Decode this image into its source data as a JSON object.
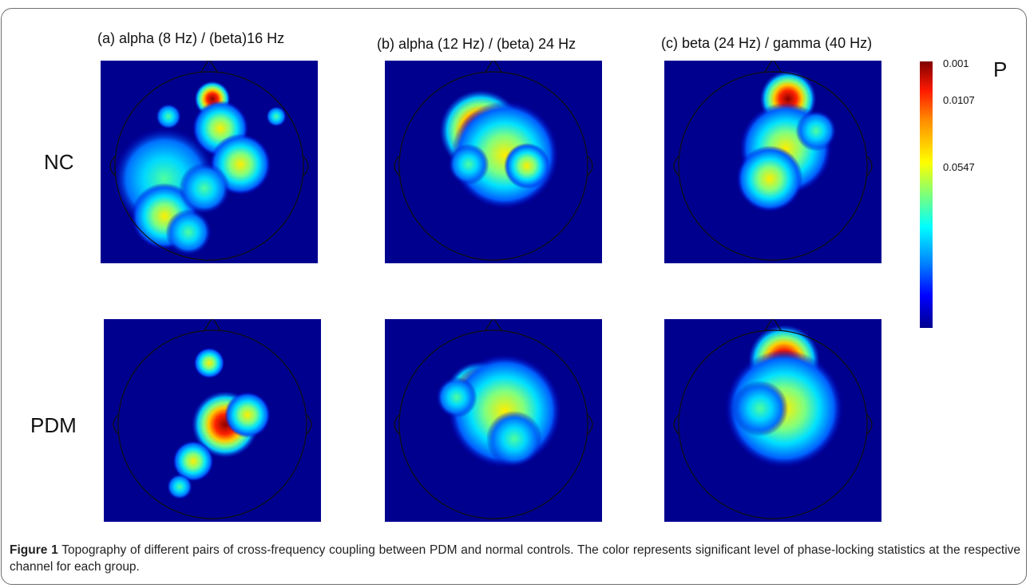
{
  "figure": {
    "column_labels": [
      "(a) alpha (8 Hz) / (beta)16 Hz",
      "(b) alpha (12 Hz) / (beta) 24 Hz",
      "(c) beta (24 Hz) / gamma (40 Hz)"
    ],
    "row_labels": [
      "NC",
      "PDM"
    ],
    "colorbar": {
      "title": "P",
      "ticks": [
        "0.001",
        "0.0107",
        "0.0547"
      ]
    },
    "caption": {
      "label": "Figure 1",
      "text": " Topography of different pairs of cross-frequency coupling between PDM and normal controls. The color represents significant level of phase-locking statistics at the respective channel for each group."
    }
  }
}
